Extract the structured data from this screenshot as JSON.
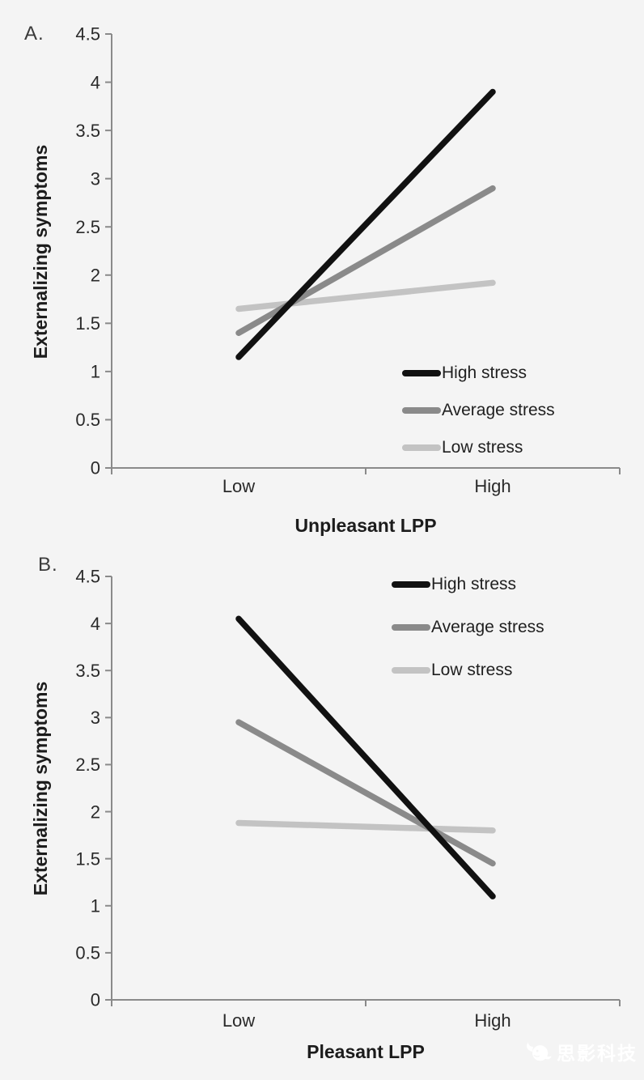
{
  "page": {
    "background_color": "#f4f4f4",
    "watermark": {
      "text": "思影科技",
      "color": "#ffffff",
      "logo": "whale-logo"
    }
  },
  "colors": {
    "high_stress": "#111111",
    "average_stress": "#8a8a8a",
    "low_stress": "#c3c3c3",
    "axis": "#8a8a8a"
  },
  "chart_data": [
    {
      "type": "line",
      "panel_label": "A.",
      "xlabel": "Unpleasant LPP",
      "ylabel": "Externalizing symptoms",
      "categories": [
        "Low",
        "High"
      ],
      "ylim": [
        0,
        4.5
      ],
      "ytick_step": 0.5,
      "grid": false,
      "legend_position": "inside-bottom-right",
      "series": [
        {
          "name": "High stress",
          "color": "#111111",
          "values": [
            1.15,
            3.9
          ]
        },
        {
          "name": "Average stress",
          "color": "#8a8a8a",
          "values": [
            1.4,
            2.9
          ]
        },
        {
          "name": "Low stress",
          "color": "#c3c3c3",
          "values": [
            1.65,
            1.92
          ]
        }
      ]
    },
    {
      "type": "line",
      "panel_label": "B.",
      "xlabel": "Pleasant LPP",
      "ylabel": "Externalizing symptoms",
      "categories": [
        "Low",
        "High"
      ],
      "ylim": [
        0,
        4.5
      ],
      "ytick_step": 0.5,
      "grid": false,
      "legend_position": "inside-top-right",
      "series": [
        {
          "name": "High stress",
          "color": "#111111",
          "values": [
            4.05,
            1.1
          ]
        },
        {
          "name": "Average stress",
          "color": "#8a8a8a",
          "values": [
            2.95,
            1.45
          ]
        },
        {
          "name": "Low stress",
          "color": "#c3c3c3",
          "values": [
            1.88,
            1.8
          ]
        }
      ]
    }
  ]
}
